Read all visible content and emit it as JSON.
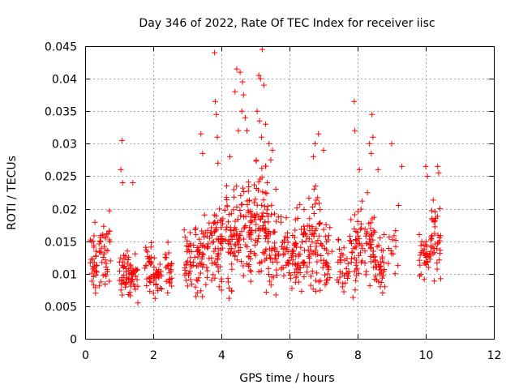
{
  "chart_data": {
    "type": "scatter",
    "title": "Day 346 of 2022, Rate Of TEC Index for receiver iisc",
    "xlabel": "GPS time / hours",
    "ylabel": "ROTI / TECUs",
    "xlim": [
      0,
      12
    ],
    "ylim": [
      0,
      0.045
    ],
    "grid": true,
    "marker": "+",
    "color": "#ff0000",
    "xticks": [
      0,
      2,
      4,
      6,
      8,
      10,
      12
    ],
    "xtick_labels": [
      "0",
      "2",
      "4",
      "6",
      "8",
      "10",
      "12"
    ],
    "yticks": [
      0,
      0.005,
      0.01,
      0.015,
      0.02,
      0.025,
      0.03,
      0.035,
      0.04,
      0.045
    ],
    "ytick_labels": [
      "0",
      "0.005",
      "0.01",
      "0.015",
      "0.02",
      "0.025",
      "0.03",
      "0.035",
      "0.04",
      "0.045"
    ],
    "series": [
      {
        "name": "ROTI",
        "clusters": [
          {
            "x0": 0.15,
            "x1": 0.35,
            "ymin": 0.004,
            "ymax": 0.02,
            "n": 30
          },
          {
            "x0": 0.4,
            "x1": 0.75,
            "ymin": 0.005,
            "ymax": 0.0215,
            "n": 40
          },
          {
            "x0": 1.0,
            "x1": 1.25,
            "ymin": 0.005,
            "ymax": 0.016,
            "n": 30
          },
          {
            "x0": 1.25,
            "x1": 1.55,
            "ymin": 0.0045,
            "ymax": 0.015,
            "n": 40
          },
          {
            "x0": 1.75,
            "x1": 1.95,
            "ymin": 0.0045,
            "ymax": 0.017,
            "n": 25
          },
          {
            "x0": 2.0,
            "x1": 2.25,
            "ymin": 0.005,
            "ymax": 0.0135,
            "n": 30
          },
          {
            "x0": 2.35,
            "x1": 2.55,
            "ymin": 0.006,
            "ymax": 0.0155,
            "n": 25
          },
          {
            "x0": 2.9,
            "x1": 3.2,
            "ymin": 0.0045,
            "ymax": 0.0195,
            "n": 35
          },
          {
            "x0": 3.2,
            "x1": 3.7,
            "ymin": 0.005,
            "ymax": 0.02,
            "n": 55
          },
          {
            "x0": 3.7,
            "x1": 4.05,
            "ymin": 0.0045,
            "ymax": 0.024,
            "n": 55
          },
          {
            "x0": 4.1,
            "x1": 4.5,
            "ymin": 0.0045,
            "ymax": 0.028,
            "n": 60
          },
          {
            "x0": 4.5,
            "x1": 4.9,
            "ymin": 0.0045,
            "ymax": 0.03,
            "n": 65
          },
          {
            "x0": 4.95,
            "x1": 5.35,
            "ymin": 0.005,
            "ymax": 0.032,
            "n": 70
          },
          {
            "x0": 5.35,
            "x1": 5.75,
            "ymin": 0.005,
            "ymax": 0.022,
            "n": 45
          },
          {
            "x0": 5.75,
            "x1": 6.1,
            "ymin": 0.0055,
            "ymax": 0.02,
            "n": 35
          },
          {
            "x0": 6.1,
            "x1": 6.5,
            "ymin": 0.005,
            "ymax": 0.023,
            "n": 55
          },
          {
            "x0": 6.5,
            "x1": 6.9,
            "ymin": 0.0045,
            "ymax": 0.026,
            "n": 55
          },
          {
            "x0": 6.9,
            "x1": 7.25,
            "ymin": 0.006,
            "ymax": 0.02,
            "n": 35
          },
          {
            "x0": 7.4,
            "x1": 7.75,
            "ymin": 0.0045,
            "ymax": 0.018,
            "n": 30
          },
          {
            "x0": 7.75,
            "x1": 8.1,
            "ymin": 0.005,
            "ymax": 0.022,
            "n": 40
          },
          {
            "x0": 8.1,
            "x1": 8.5,
            "ymin": 0.006,
            "ymax": 0.024,
            "n": 45
          },
          {
            "x0": 8.5,
            "x1": 8.8,
            "ymin": 0.0045,
            "ymax": 0.018,
            "n": 35
          },
          {
            "x0": 8.9,
            "x1": 9.2,
            "ymin": 0.008,
            "ymax": 0.02,
            "n": 12
          },
          {
            "x0": 9.8,
            "x1": 10.1,
            "ymin": 0.008,
            "ymax": 0.018,
            "n": 30
          },
          {
            "x0": 10.1,
            "x1": 10.45,
            "ymin": 0.007,
            "ymax": 0.023,
            "n": 40
          }
        ],
        "outliers": [
          {
            "x": 1.08,
            "y": 0.0305
          },
          {
            "x": 1.05,
            "y": 0.026
          },
          {
            "x": 1.1,
            "y": 0.024
          },
          {
            "x": 1.4,
            "y": 0.024
          },
          {
            "x": 3.4,
            "y": 0.0315
          },
          {
            "x": 3.45,
            "y": 0.0285
          },
          {
            "x": 3.8,
            "y": 0.044
          },
          {
            "x": 3.82,
            "y": 0.0365
          },
          {
            "x": 3.85,
            "y": 0.0345
          },
          {
            "x": 3.88,
            "y": 0.031
          },
          {
            "x": 3.9,
            "y": 0.027
          },
          {
            "x": 4.25,
            "y": 0.028
          },
          {
            "x": 4.45,
            "y": 0.0415
          },
          {
            "x": 4.55,
            "y": 0.041
          },
          {
            "x": 4.4,
            "y": 0.038
          },
          {
            "x": 4.62,
            "y": 0.0395
          },
          {
            "x": 4.65,
            "y": 0.0375
          },
          {
            "x": 4.6,
            "y": 0.035
          },
          {
            "x": 4.5,
            "y": 0.032
          },
          {
            "x": 4.7,
            "y": 0.034
          },
          {
            "x": 4.75,
            "y": 0.032
          },
          {
            "x": 5.1,
            "y": 0.0405
          },
          {
            "x": 5.15,
            "y": 0.04
          },
          {
            "x": 5.2,
            "y": 0.0445
          },
          {
            "x": 5.25,
            "y": 0.039
          },
          {
            "x": 5.05,
            "y": 0.035
          },
          {
            "x": 5.12,
            "y": 0.0335
          },
          {
            "x": 5.18,
            "y": 0.031
          },
          {
            "x": 5.3,
            "y": 0.033
          },
          {
            "x": 5.4,
            "y": 0.03
          },
          {
            "x": 5.5,
            "y": 0.029
          },
          {
            "x": 5.45,
            "y": 0.0275
          },
          {
            "x": 6.85,
            "y": 0.0315
          },
          {
            "x": 7.0,
            "y": 0.029
          },
          {
            "x": 6.75,
            "y": 0.03
          },
          {
            "x": 6.7,
            "y": 0.028
          },
          {
            "x": 7.9,
            "y": 0.0365
          },
          {
            "x": 7.92,
            "y": 0.032
          },
          {
            "x": 8.05,
            "y": 0.026
          },
          {
            "x": 8.35,
            "y": 0.03
          },
          {
            "x": 8.42,
            "y": 0.0345
          },
          {
            "x": 8.45,
            "y": 0.031
          },
          {
            "x": 8.4,
            "y": 0.0285
          },
          {
            "x": 8.6,
            "y": 0.026
          },
          {
            "x": 9.0,
            "y": 0.03
          },
          {
            "x": 9.3,
            "y": 0.0265
          },
          {
            "x": 9.2,
            "y": 0.0205
          },
          {
            "x": 10.0,
            "y": 0.0265
          },
          {
            "x": 10.05,
            "y": 0.025
          },
          {
            "x": 10.35,
            "y": 0.0265
          },
          {
            "x": 10.38,
            "y": 0.0255
          },
          {
            "x": 8.8,
            "y": 0.008
          },
          {
            "x": 9.1,
            "y": 0.01
          },
          {
            "x": 5.6,
            "y": 0.023
          }
        ]
      }
    ]
  }
}
